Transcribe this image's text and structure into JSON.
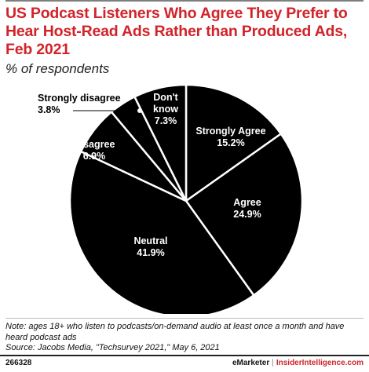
{
  "title": "US Podcast Listeners Who Agree They Prefer to Hear Host-Read Ads Rather than Produced Ads, Feb 2021",
  "subtitle": "% of respondents",
  "chart_data": {
    "type": "pie",
    "title": "US Podcast Listeners Who Agree They Prefer to Hear Host-Read Ads Rather than Produced Ads, Feb 2021",
    "subtitle": "% of respondents",
    "unit": "%",
    "slices": [
      {
        "label": "Strongly Agree",
        "value": 15.2,
        "display": "15.2%"
      },
      {
        "label": "Agree",
        "value": 24.9,
        "display": "24.9%"
      },
      {
        "label": "Neutral",
        "value": 41.9,
        "display": "41.9%"
      },
      {
        "label": "Disagree",
        "value": 6.9,
        "display": "6.9%"
      },
      {
        "label": "Strongly disagree",
        "value": 3.8,
        "display": "3.8%"
      },
      {
        "label": "Don't know",
        "value": 7.3,
        "display": "7.3%"
      }
    ],
    "colors": {
      "slice": "#000000",
      "separator": "#ffffff",
      "label": "#ffffff",
      "outside_label": "#000000"
    }
  },
  "note": "Note: ages 18+ who listen to podcasts/on-demand audio at least once a month and have heard podcast ads",
  "source": "Source: Jacobs Media, \"Techsurvey 2021,\" May 6, 2021",
  "footer": {
    "chart_id": "266328",
    "brand": "eMarketer",
    "separator": "|",
    "brand2": "InsiderIntelligence.com"
  },
  "colors": {
    "accent": "#d1232a",
    "text": "#222222"
  }
}
